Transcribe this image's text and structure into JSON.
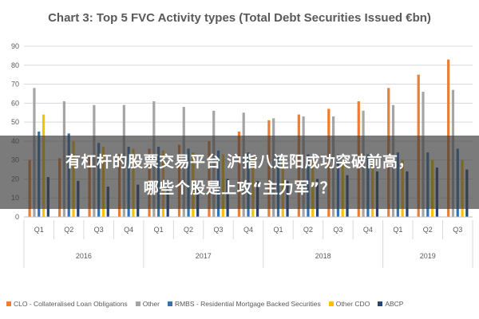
{
  "chart_data": {
    "type": "bar",
    "title": "Chart 3: Top 5 FVC Activity types (Total Debt Securities Issued €bn)",
    "ylim": [
      0,
      90
    ],
    "yticks": [
      0,
      10,
      20,
      30,
      40,
      50,
      60,
      70,
      80,
      90
    ],
    "categories": [
      "Q1",
      "Q2",
      "Q3",
      "Q4",
      "Q1",
      "Q2",
      "Q3",
      "Q4",
      "Q1",
      "Q2",
      "Q3",
      "Q4",
      "Q1",
      "Q2",
      "Q3"
    ],
    "year_groups": [
      {
        "label": "2016",
        "count": 4
      },
      {
        "label": "2017",
        "count": 4
      },
      {
        "label": "2018",
        "count": 4
      },
      {
        "label": "2019",
        "count": 3
      }
    ],
    "series": [
      {
        "name": "CLO - Collateralised Loan Obligations",
        "color": "#ED7D31",
        "values": [
          30,
          31,
          32,
          33,
          36,
          38,
          40,
          45,
          51,
          54,
          57,
          61,
          68,
          75,
          83
        ]
      },
      {
        "name": "Other",
        "color": "#A5A5A5",
        "values": [
          68,
          61,
          59,
          59,
          61,
          58,
          56,
          55,
          52,
          53,
          53,
          56,
          59,
          66,
          67
        ]
      },
      {
        "name": "RMBS - Residential Mortgage Backed Securities",
        "color": "#2E75B6",
        "values": [
          45,
          44,
          39,
          37,
          37,
          36,
          35,
          34,
          32,
          33,
          33,
          33,
          34,
          34,
          36
        ]
      },
      {
        "name": "Other CDO",
        "color": "#FFC000",
        "values": [
          54,
          40,
          37,
          36,
          35,
          34,
          33,
          32,
          31,
          30,
          30,
          30,
          30,
          30,
          30
        ]
      },
      {
        "name": "ABCP",
        "color": "#264478",
        "values": [
          21,
          19,
          16,
          17,
          18,
          17,
          20,
          19,
          19,
          20,
          22,
          24,
          24,
          26,
          25
        ]
      }
    ],
    "grid": true,
    "legend_position": "bottom"
  },
  "overlay": {
    "line1": "有杠杆的股票交易平台 沪指八连阳成功突破前高，",
    "line2": "哪些个股是上攻“主力军”？"
  }
}
